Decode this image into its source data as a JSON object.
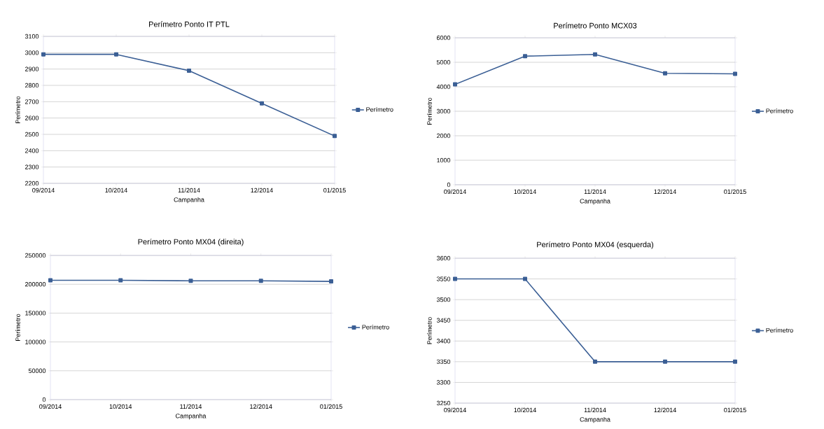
{
  "chart_data": [
    {
      "type": "line",
      "title": "Perímetro Ponto IT PTL",
      "xlabel": "Campanha",
      "ylabel": "Perímetro",
      "categories": [
        "09/2014",
        "10/2014",
        "11/2014",
        "12/2014",
        "01/2015"
      ],
      "series": [
        {
          "name": "Perímetro",
          "color": "#3b5f95",
          "values": [
            2990,
            2990,
            2890,
            2690,
            2490
          ]
        }
      ],
      "ylim": [
        2200,
        3100
      ],
      "yticks": [
        2200,
        2300,
        2400,
        2500,
        2600,
        2700,
        2800,
        2900,
        3000,
        3100
      ],
      "grid": "y",
      "legend": "right",
      "marker": "square"
    },
    {
      "type": "line",
      "title": "Perímetro Ponto MCX03",
      "xlabel": "Campanha",
      "ylabel": "Perímetro",
      "categories": [
        "09/2014",
        "10/2014",
        "11/2014",
        "12/2014",
        "01/2015"
      ],
      "series": [
        {
          "name": "Perímetro",
          "color": "#3b5f95",
          "values": [
            4100,
            5250,
            5320,
            4550,
            4530
          ]
        }
      ],
      "ylim": [
        0,
        6000
      ],
      "yticks": [
        0,
        1000,
        2000,
        3000,
        4000,
        5000,
        6000
      ],
      "grid": "y",
      "legend": "right",
      "marker": "square"
    },
    {
      "type": "line",
      "title": "Perímetro Ponto MX04 (direita)",
      "xlabel": "Campanha",
      "ylabel": "Perímetro",
      "categories": [
        "09/2014",
        "10/2014",
        "11/2014",
        "12/2014",
        "01/2015"
      ],
      "series": [
        {
          "name": "Perímetro",
          "color": "#3b5f95",
          "values": [
            207000,
            207000,
            206000,
            206000,
            205000
          ]
        }
      ],
      "ylim": [
        0,
        250000
      ],
      "yticks": [
        0,
        50000,
        100000,
        150000,
        200000,
        250000
      ],
      "grid": "y",
      "legend": "right",
      "marker": "square"
    },
    {
      "type": "line",
      "title": "Perímetro Ponto MX04 (esquerda)",
      "xlabel": "Campanha",
      "ylabel": "Perímetro",
      "categories": [
        "09/2014",
        "10/2014",
        "11/2014",
        "12/2014",
        "01/2015"
      ],
      "series": [
        {
          "name": "Perímetro",
          "color": "#3b5f95",
          "values": [
            3550,
            3550,
            3350,
            3350,
            3350
          ]
        }
      ],
      "ylim": [
        3250,
        3600
      ],
      "yticks": [
        3250,
        3300,
        3350,
        3400,
        3450,
        3500,
        3550,
        3600
      ],
      "grid": "y",
      "legend": "right",
      "marker": "square"
    }
  ]
}
